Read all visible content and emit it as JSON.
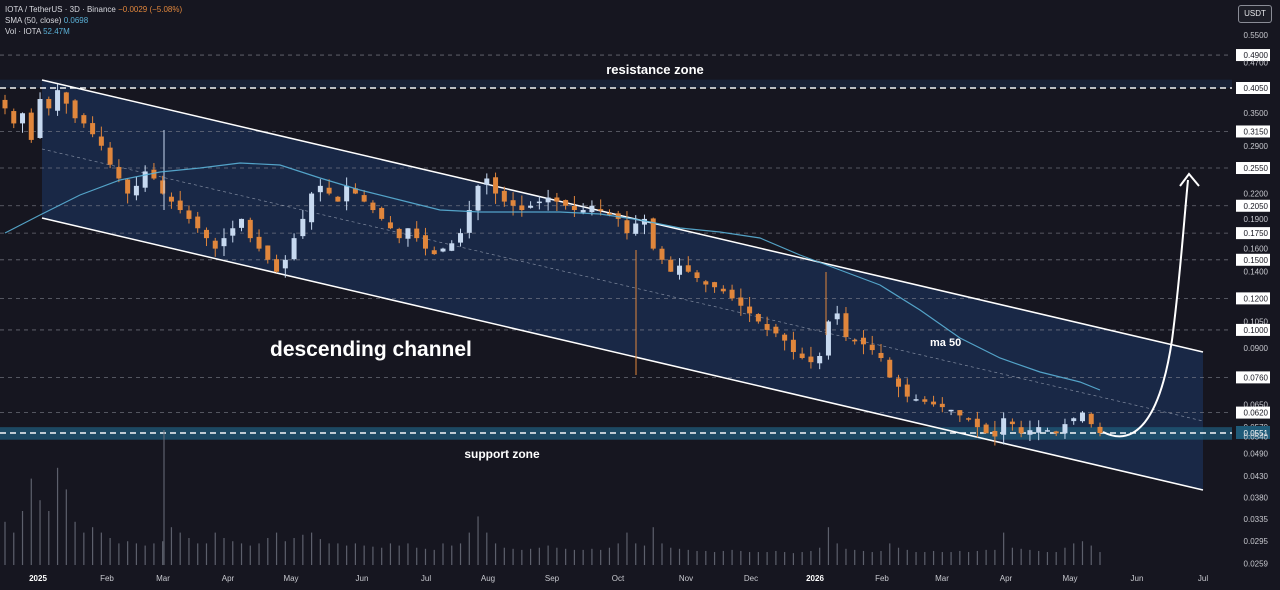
{
  "legend": {
    "symbol": "IOTA / TetherUS · 3D · Binance",
    "change": "−0.0029 (−5.08%)",
    "sma_label": "SMA (50, close)",
    "sma_value": "0.0698",
    "vol_label": "Vol · IOTA",
    "vol_value": "52.47M"
  },
  "currency_button": "USDT",
  "colors": {
    "background": "#161620",
    "up_candle": "#c7d9f0",
    "down_candle": "#e0863c",
    "channel_fill": "#1a2b4d",
    "channel_line": "#ffffff",
    "ma_line": "#5ab0d6",
    "support_fill": "#1f5a78"
  },
  "annotations": {
    "resistance": "resistance zone",
    "support": "support zone",
    "channel": "descending channel",
    "ma": "ma 50"
  },
  "chart_data": {
    "type": "candlestick",
    "x_labels": [
      "2025",
      "Feb",
      "Mar",
      "Apr",
      "May",
      "Jun",
      "Jul",
      "Aug",
      "Sep",
      "Oct",
      "Nov",
      "Dec",
      "2026",
      "Feb",
      "Mar",
      "Apr",
      "May",
      "Jun",
      "Jul"
    ],
    "price_labels": [
      "0.5500",
      "0.4900",
      "0.4700",
      "0.4050",
      "0.3500",
      "0.3150",
      "0.2900",
      "0.2550",
      "0.2200",
      "0.2050",
      "0.1900",
      "0.1750",
      "0.1600",
      "0.1500",
      "0.1400",
      "0.1200",
      "0.1050",
      "0.1000",
      "0.0900",
      "0.0760",
      "0.0650",
      "0.0620",
      "0.0570",
      "0.0551",
      "0.0540",
      "0.0490",
      "0.0430",
      "0.0380",
      "0.0335",
      "0.0295",
      "0.0259"
    ],
    "dashed_levels": [
      0.49,
      0.405,
      0.315,
      0.255,
      0.205,
      0.175,
      0.15,
      0.12,
      0.1,
      0.076,
      0.062,
      0.0551
    ],
    "current_price": 0.0551,
    "resistance_zone": [
      0.405,
      0.425
    ],
    "support_zone": [
      0.053,
      0.057
    ],
    "sma50_last": 0.0698,
    "close_series": [
      0.36,
      0.33,
      0.35,
      0.3,
      0.38,
      0.36,
      0.4,
      0.37,
      0.34,
      0.33,
      0.31,
      0.29,
      0.26,
      0.24,
      0.22,
      0.23,
      0.25,
      0.24,
      0.22,
      0.21,
      0.2,
      0.19,
      0.18,
      0.17,
      0.16,
      0.17,
      0.18,
      0.19,
      0.17,
      0.16,
      0.15,
      0.14,
      0.15,
      0.17,
      0.19,
      0.22,
      0.23,
      0.22,
      0.21,
      0.23,
      0.22,
      0.21,
      0.2,
      0.19,
      0.18,
      0.17,
      0.18,
      0.17,
      0.16,
      0.155,
      0.16,
      0.165,
      0.175,
      0.2,
      0.23,
      0.24,
      0.22,
      0.21,
      0.205,
      0.2,
      0.205,
      0.21,
      0.215,
      0.21,
      0.205,
      0.2,
      0.2,
      0.205,
      0.2,
      0.195,
      0.19,
      0.175,
      0.185,
      0.19,
      0.16,
      0.15,
      0.14,
      0.145,
      0.14,
      0.135,
      0.13,
      0.128,
      0.125,
      0.12,
      0.115,
      0.11,
      0.105,
      0.1,
      0.098,
      0.094,
      0.088,
      0.085,
      0.083,
      0.086,
      0.105,
      0.11,
      0.096,
      0.094,
      0.092,
      0.089,
      0.085,
      0.076,
      0.072,
      0.068,
      0.067,
      0.066,
      0.065,
      0.064,
      0.063,
      0.061,
      0.06,
      0.057,
      0.055,
      0.054,
      0.06,
      0.058,
      0.055,
      0.056,
      0.057,
      0.056,
      0.055,
      0.058,
      0.06,
      0.062,
      0.058,
      0.0551
    ],
    "volume_series": [
      0.4,
      0.3,
      0.5,
      0.8,
      0.6,
      0.5,
      0.9,
      0.7,
      0.4,
      0.3,
      0.35,
      0.3,
      0.25,
      0.2,
      0.22,
      0.2,
      0.18,
      0.2,
      0.22,
      0.35,
      0.3,
      0.25,
      0.2,
      0.2,
      0.3,
      0.25,
      0.22,
      0.2,
      0.18,
      0.2,
      0.25,
      0.3,
      0.22,
      0.25,
      0.28,
      0.3,
      0.24,
      0.2,
      0.2,
      0.18,
      0.2,
      0.18,
      0.17,
      0.16,
      0.2,
      0.18,
      0.2,
      0.16,
      0.15,
      0.14,
      0.2,
      0.18,
      0.2,
      0.3,
      0.45,
      0.3,
      0.2,
      0.16,
      0.15,
      0.14,
      0.15,
      0.16,
      0.18,
      0.16,
      0.15,
      0.14,
      0.14,
      0.15,
      0.14,
      0.16,
      0.2,
      0.3,
      0.2,
      0.18,
      0.35,
      0.2,
      0.16,
      0.15,
      0.14,
      0.13,
      0.13,
      0.12,
      0.13,
      0.14,
      0.13,
      0.12,
      0.12,
      0.12,
      0.13,
      0.12,
      0.11,
      0.12,
      0.13,
      0.16,
      0.35,
      0.2,
      0.15,
      0.14,
      0.13,
      0.12,
      0.13,
      0.2,
      0.16,
      0.14,
      0.12,
      0.12,
      0.13,
      0.12,
      0.12,
      0.13,
      0.12,
      0.13,
      0.14,
      0.14,
      0.3,
      0.16,
      0.15,
      0.14,
      0.13,
      0.12,
      0.12,
      0.16,
      0.2,
      0.22,
      0.18,
      0.12
    ]
  }
}
